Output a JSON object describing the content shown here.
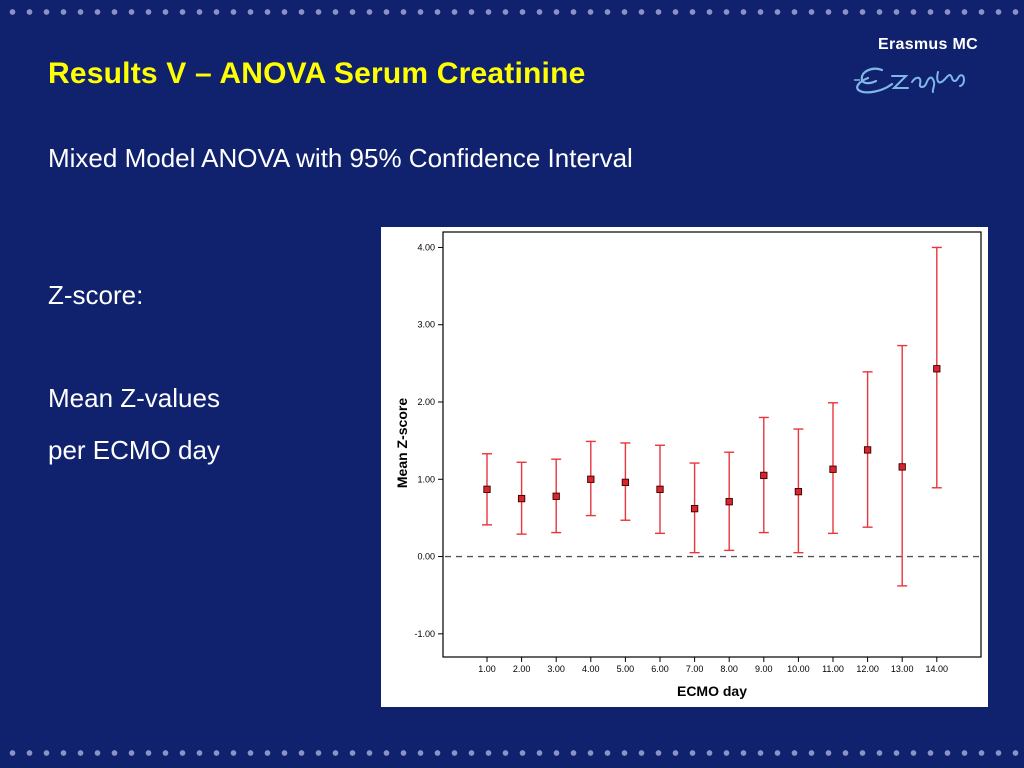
{
  "slide": {
    "title": "Results V – ANOVA Serum Creatinine",
    "subtitle": "Mixed Model ANOVA with 95% Confidence Interval",
    "zscore_label": "Z-score:",
    "mean_line1": "Mean Z-values",
    "mean_line2": "per ECMO day",
    "logo_text": "Erasmus MC",
    "logo_signature": "Erafmus"
  },
  "colors": {
    "background": "#10226e",
    "title": "#ffff00",
    "text": "#ffffff",
    "error_bar": "#e8363c",
    "marker": "#d9262c"
  },
  "chart_data": {
    "type": "scatter",
    "xlabel": "ECMO day",
    "ylabel": "Mean Z-score",
    "ylim": [
      -1.3,
      4.2
    ],
    "yticks": [
      -1,
      0,
      1,
      2,
      3,
      4
    ],
    "ytick_labels": [
      "-1.00",
      "0.00",
      "1.00",
      "2.00",
      "3.00",
      "4.00"
    ],
    "categories": [
      "1.00",
      "2.00",
      "3.00",
      "4.00",
      "5.00",
      "6.00",
      "7.00",
      "8.00",
      "9.00",
      "10.00",
      "11.00",
      "12.00",
      "13.00",
      "14.00"
    ],
    "mean": [
      0.87,
      0.75,
      0.78,
      1.0,
      0.96,
      0.87,
      0.62,
      0.71,
      1.05,
      0.84,
      1.13,
      1.38,
      1.16,
      2.43
    ],
    "ci_lower": [
      0.41,
      0.29,
      0.31,
      0.53,
      0.47,
      0.3,
      0.05,
      0.08,
      0.31,
      0.05,
      0.3,
      0.38,
      -0.38,
      0.89
    ],
    "ci_upper": [
      1.33,
      1.22,
      1.26,
      1.49,
      1.47,
      1.44,
      1.21,
      1.35,
      1.8,
      1.65,
      1.99,
      2.39,
      2.73,
      4.0
    ],
    "reference_line": 0,
    "grid": false,
    "legend": "none"
  }
}
